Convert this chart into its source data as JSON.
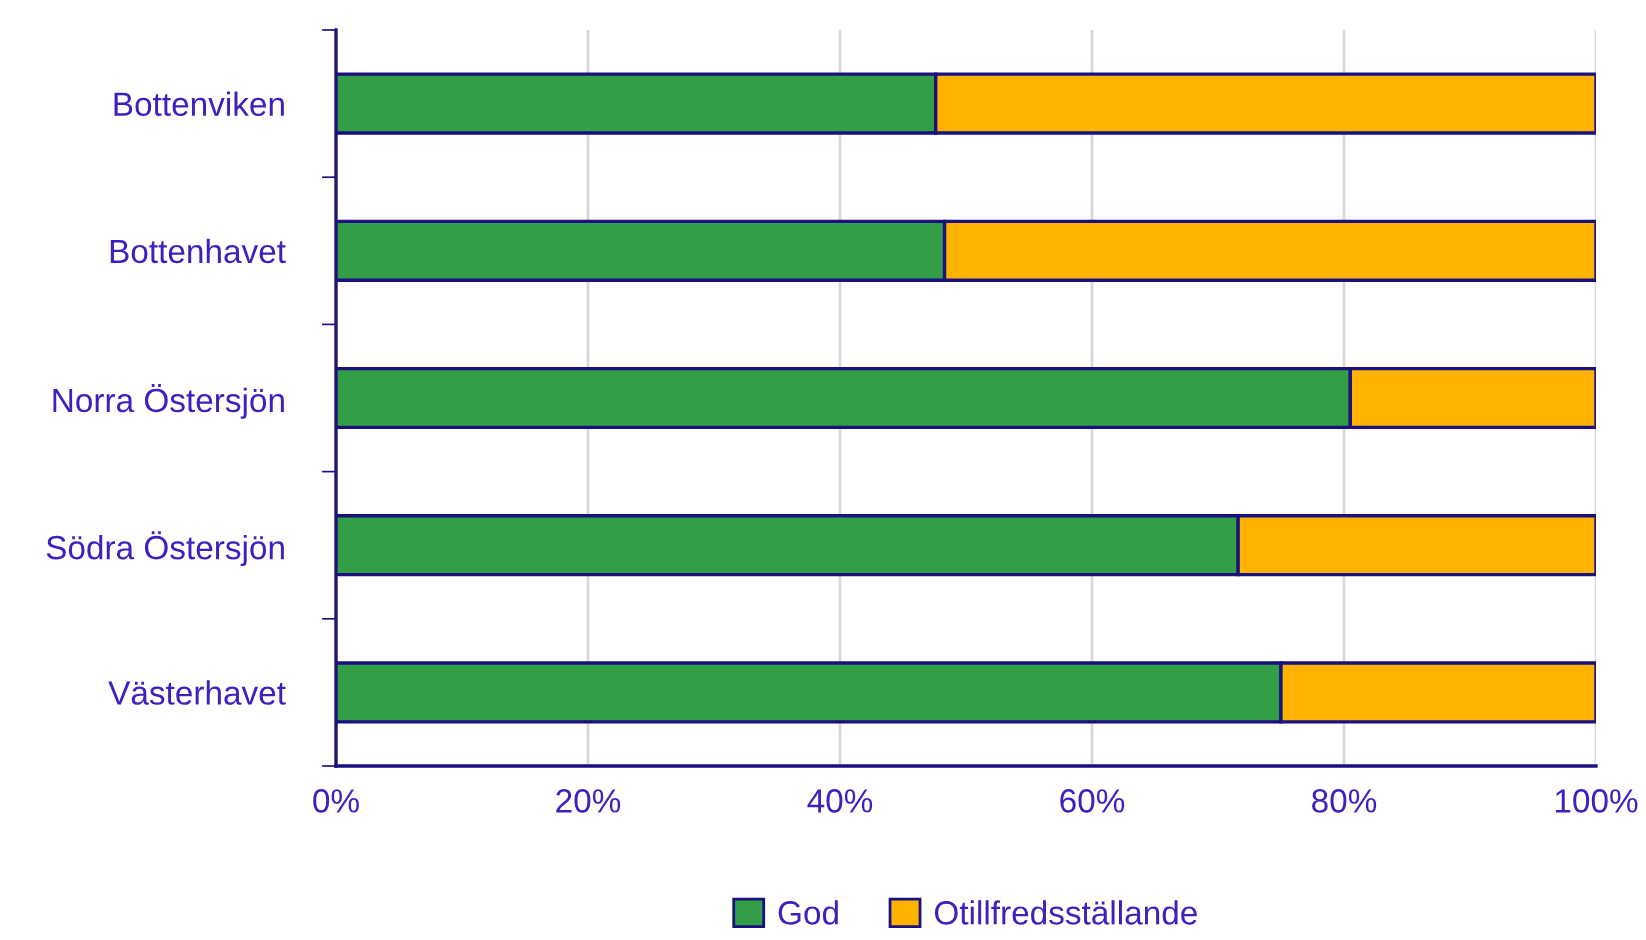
{
  "chart_data": {
    "type": "bar",
    "orientation": "horizontal",
    "stacked": true,
    "categories": [
      "Bottenviken",
      "Bottenhavet",
      "Norra Östersjön",
      "Södra Östersjön",
      "Västerhavet"
    ],
    "series": [
      {
        "name": "God",
        "color": "#339e45",
        "values": [
          47.6,
          48.3,
          80.5,
          71.6,
          75.0
        ]
      },
      {
        "name": "Otillfredsställande",
        "color": "#ffb300",
        "values": [
          52.4,
          51.7,
          19.5,
          28.4,
          25.0
        ]
      }
    ],
    "xlim": [
      0,
      100
    ],
    "xticks": [
      {
        "value": 0,
        "label": "0%"
      },
      {
        "value": 20,
        "label": "20%"
      },
      {
        "value": 40,
        "label": "40%"
      },
      {
        "value": 60,
        "label": "60%"
      },
      {
        "value": 80,
        "label": "80%"
      },
      {
        "value": 100,
        "label": "100%"
      }
    ],
    "grid": "x",
    "legend": "bottom"
  }
}
